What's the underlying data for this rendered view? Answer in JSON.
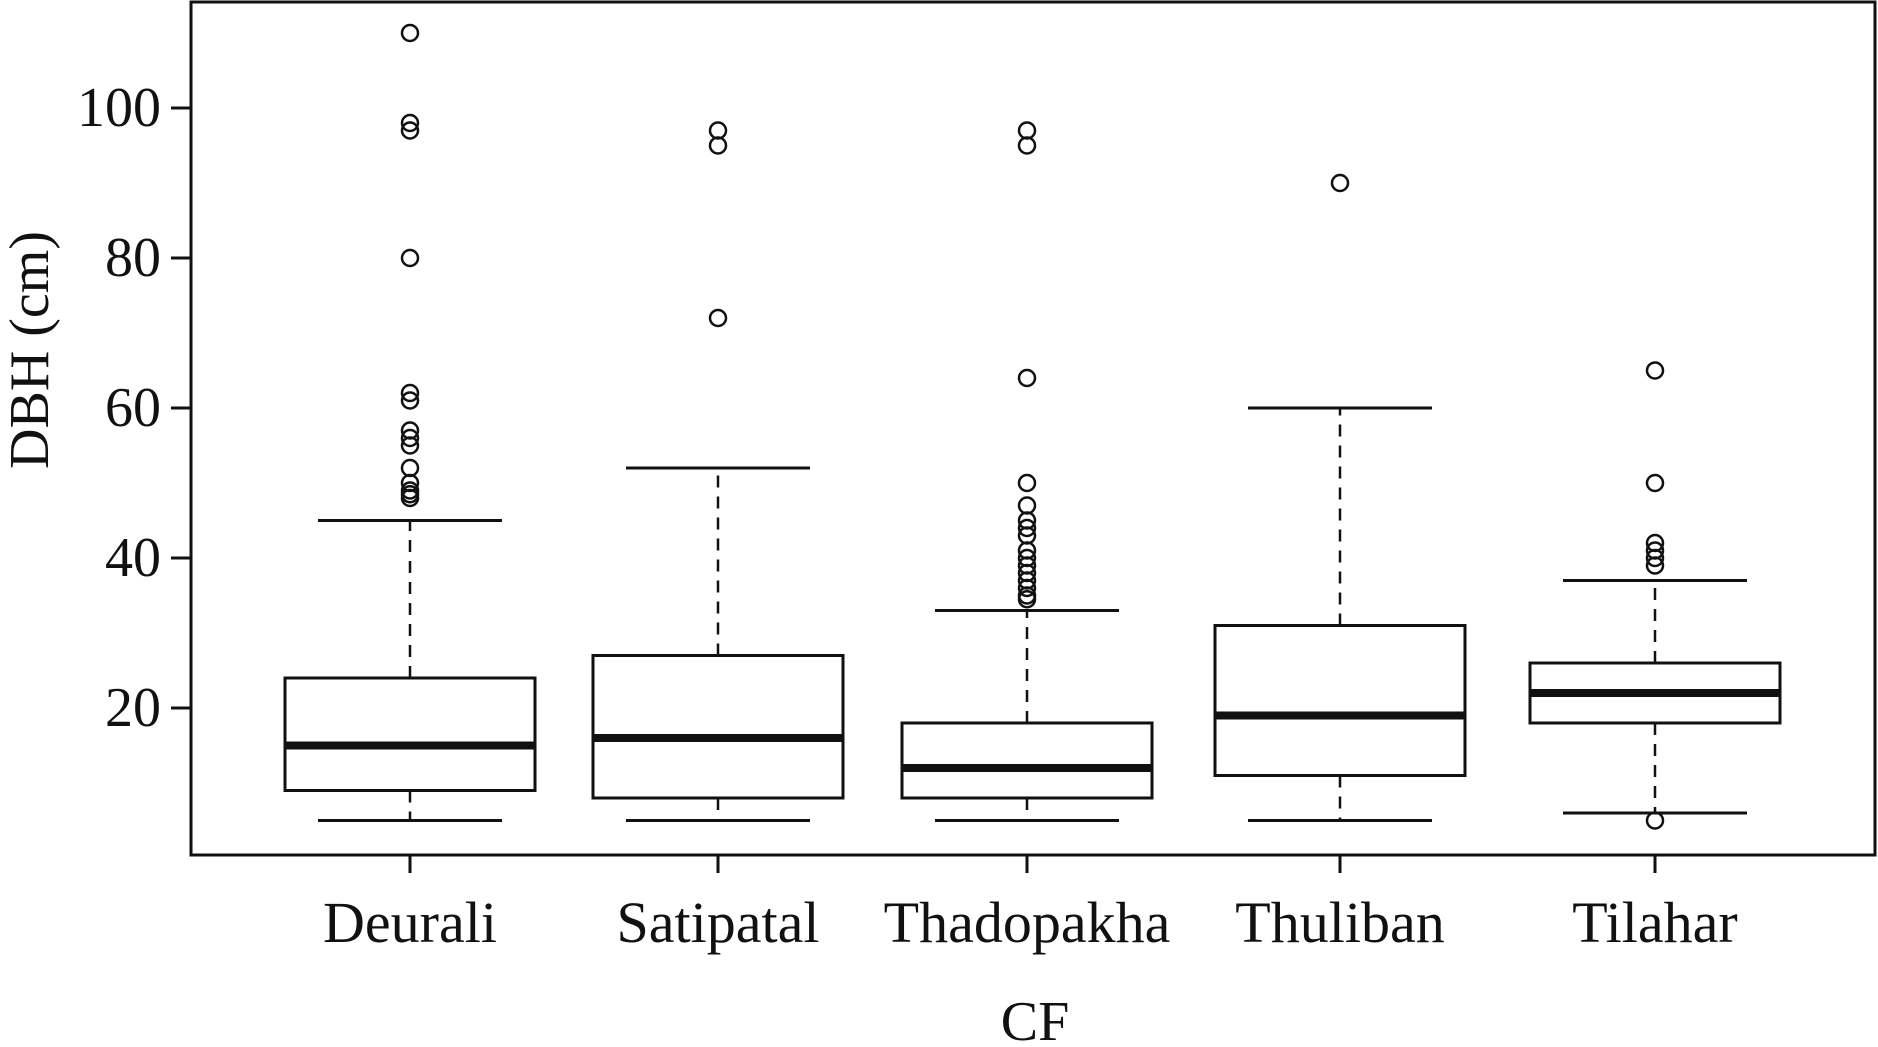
{
  "chart_data": {
    "type": "boxplot",
    "title": "",
    "xlabel": "CF",
    "ylabel": "DBH (cm)",
    "ylim": [
      0,
      110
    ],
    "yticks": [
      20,
      40,
      60,
      80,
      100
    ],
    "grid": false,
    "legend": "none",
    "categories": [
      "Deurali",
      "Satipatal",
      "Thadopakha",
      "Thuliban",
      "Tilahar"
    ],
    "boxes": [
      {
        "name": "Deurali",
        "whisker_low": 5,
        "q1": 9,
        "median": 15,
        "q3": 24,
        "whisker_high": 45,
        "outliers": [
          110,
          98,
          97,
          80,
          62,
          61,
          57,
          56,
          55,
          52,
          50,
          49,
          48.5,
          48
        ]
      },
      {
        "name": "Satipatal",
        "whisker_low": 5,
        "q1": 8,
        "median": 16,
        "q3": 27,
        "whisker_high": 52,
        "outliers": [
          97,
          95,
          72
        ]
      },
      {
        "name": "Thadopakha",
        "whisker_low": 5,
        "q1": 8,
        "median": 12,
        "q3": 18,
        "whisker_high": 33,
        "outliers": [
          97,
          95,
          64,
          50,
          47,
          45,
          44,
          43,
          41,
          40,
          39,
          38,
          37,
          36,
          35,
          34.5
        ]
      },
      {
        "name": "Thuliban",
        "whisker_low": 5,
        "q1": 11,
        "median": 19,
        "q3": 31,
        "whisker_high": 60,
        "outliers": [
          90
        ]
      },
      {
        "name": "Tilahar",
        "whisker_low": 6,
        "q1": 18,
        "median": 22,
        "q3": 26,
        "whisker_high": 37,
        "outliers": [
          65,
          50,
          42,
          41,
          40,
          39,
          5
        ]
      }
    ]
  }
}
